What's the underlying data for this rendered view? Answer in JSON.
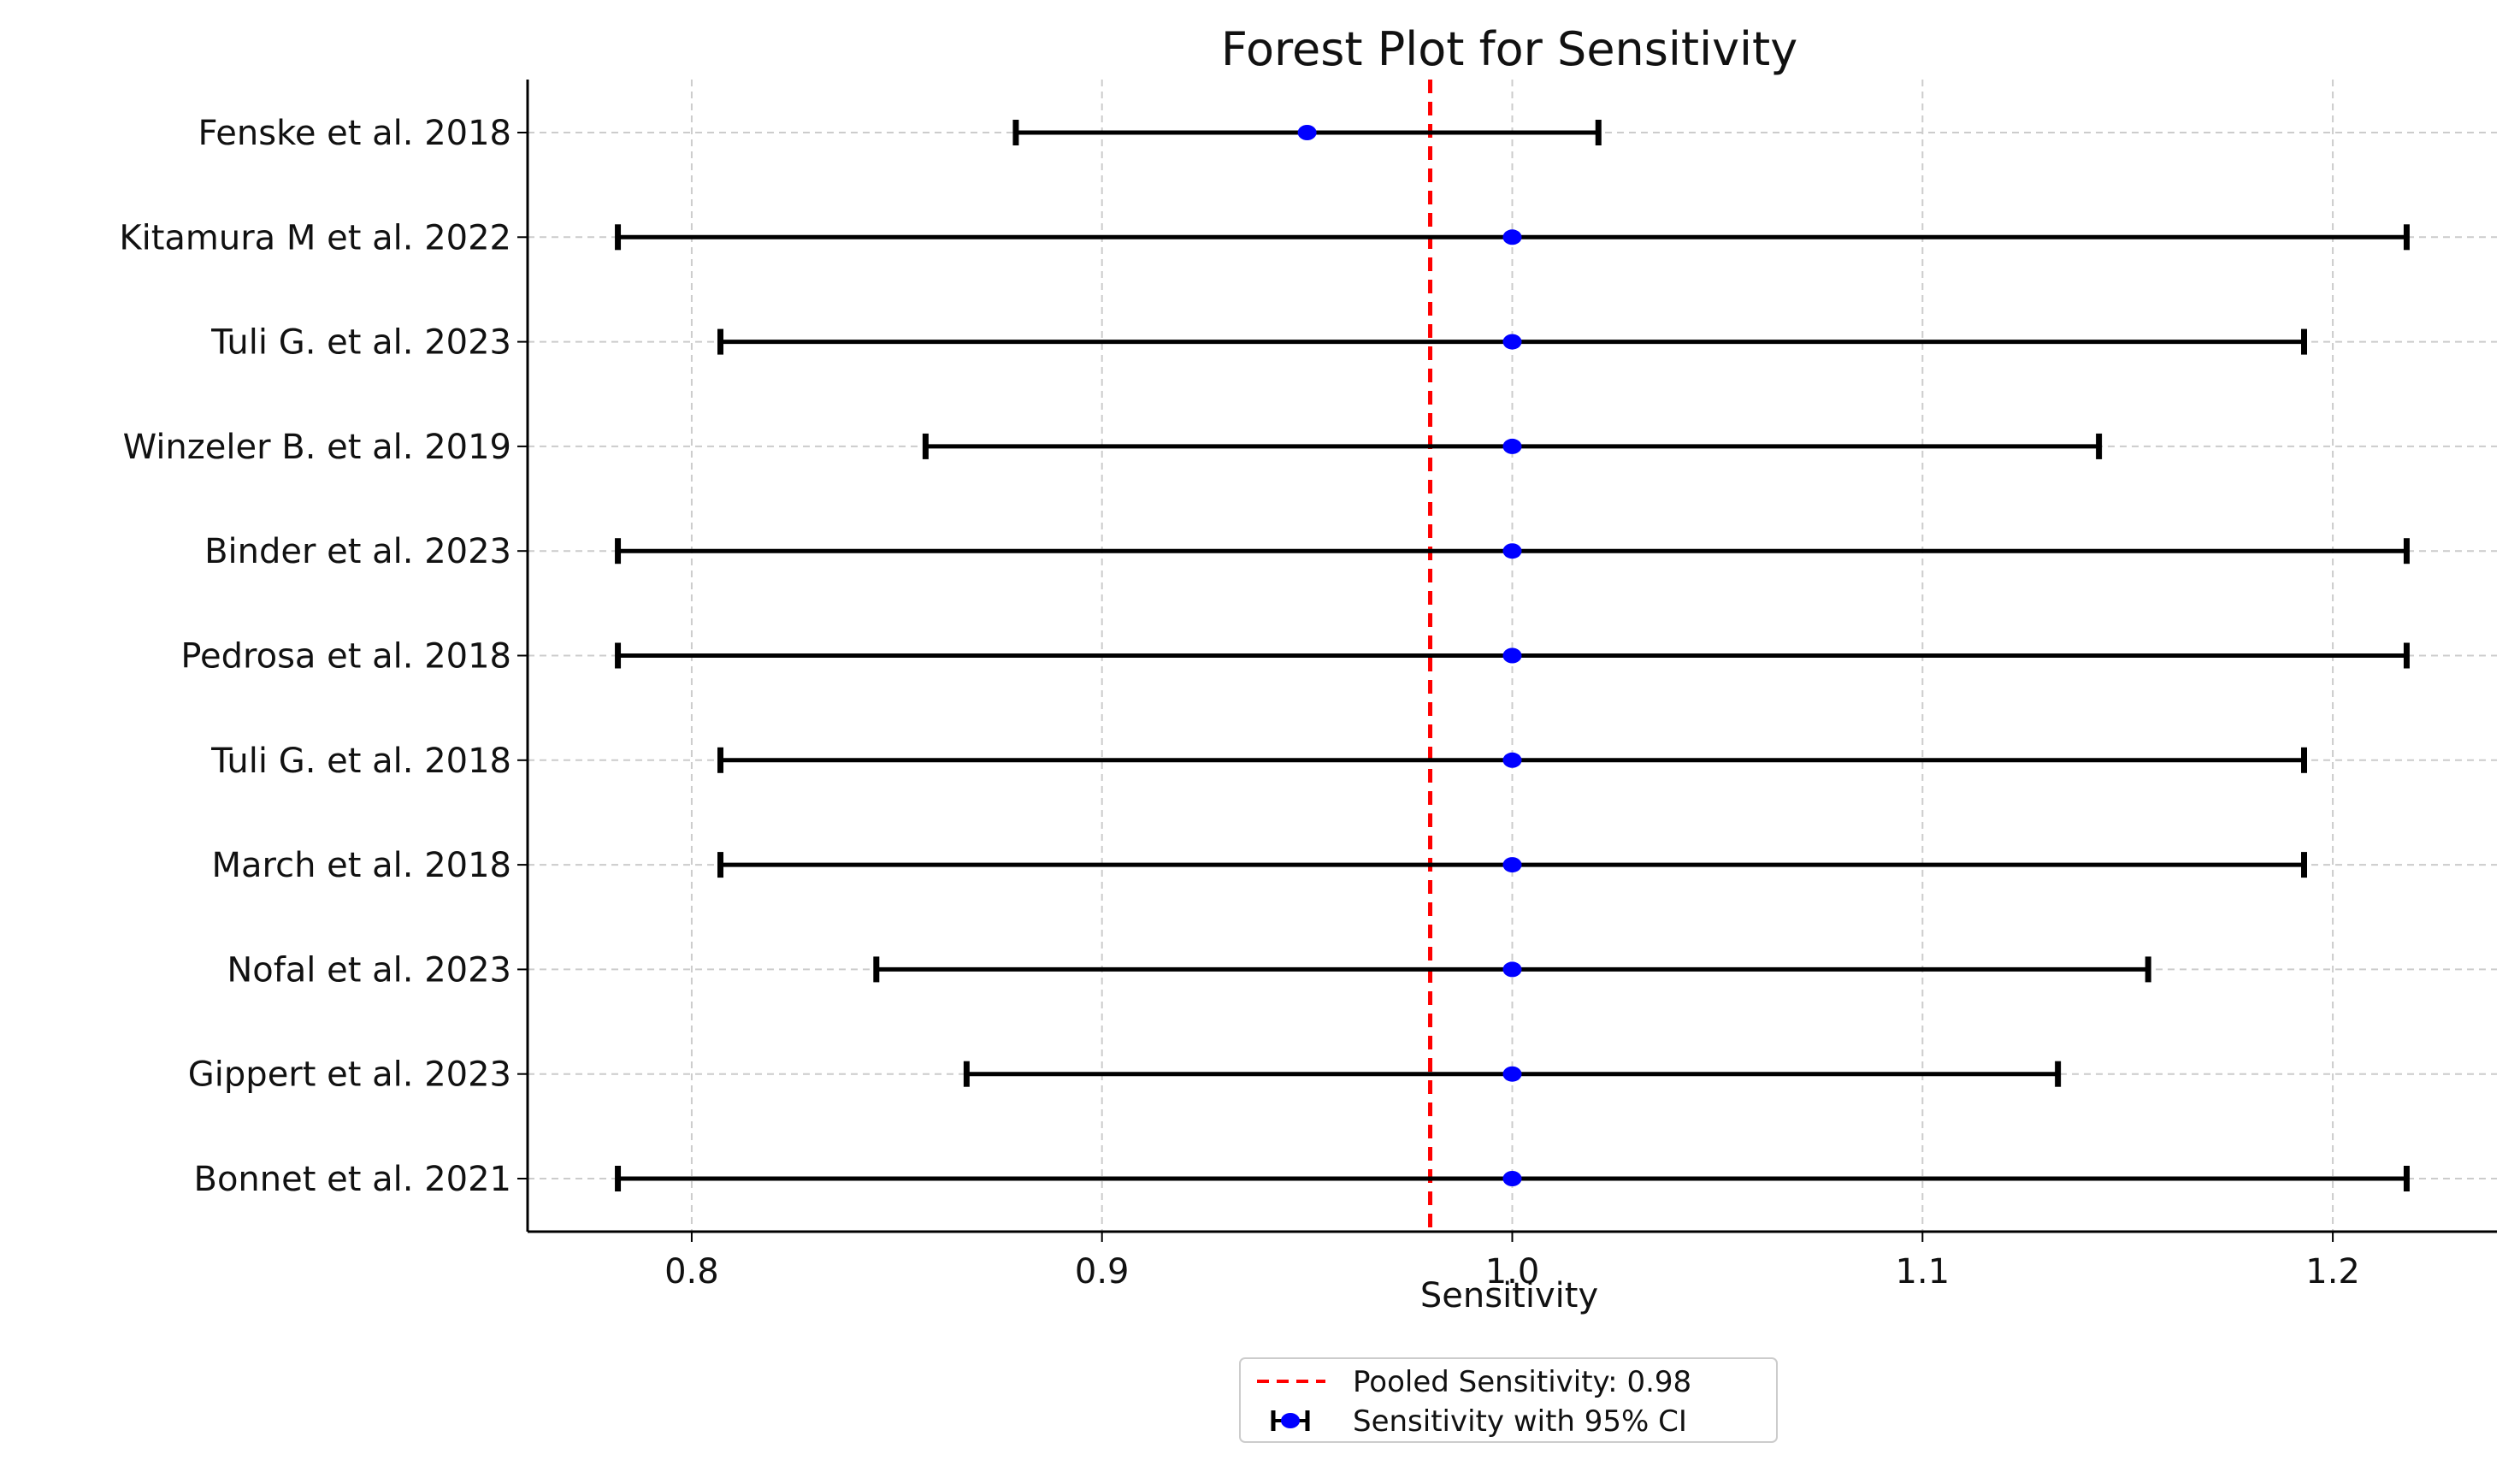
{
  "chart_data": {
    "type": "forest",
    "title": "Forest Plot for Sensitivity",
    "xlabel": "Sensitivity",
    "ylabel": "",
    "xlim": [
      0.76,
      1.24
    ],
    "xticks": [
      "0.8",
      "0.9",
      "1.0",
      "1.1",
      "1.2"
    ],
    "grid": true,
    "studies": [
      {
        "label": "Fenske et al. 2018",
        "estimate": 0.95,
        "lower": 0.879,
        "upper": 1.021
      },
      {
        "label": "Kitamura M et al. 2022",
        "estimate": 1.0,
        "lower": 0.782,
        "upper": 1.218
      },
      {
        "label": "Tuli G. et al. 2023",
        "estimate": 1.0,
        "lower": 0.807,
        "upper": 1.193
      },
      {
        "label": "Winzeler B. et al. 2019",
        "estimate": 1.0,
        "lower": 0.857,
        "upper": 1.143
      },
      {
        "label": "Binder et al. 2023",
        "estimate": 1.0,
        "lower": 0.782,
        "upper": 1.218
      },
      {
        "label": "Pedrosa et al. 2018",
        "estimate": 1.0,
        "lower": 0.782,
        "upper": 1.218
      },
      {
        "label": "Tuli G. et al. 2018",
        "estimate": 1.0,
        "lower": 0.807,
        "upper": 1.193
      },
      {
        "label": "March et al. 2018",
        "estimate": 1.0,
        "lower": 0.807,
        "upper": 1.193
      },
      {
        "label": "Nofal et al. 2023",
        "estimate": 1.0,
        "lower": 0.845,
        "upper": 1.155
      },
      {
        "label": "Gippert et al. 2023",
        "estimate": 1.0,
        "lower": 0.867,
        "upper": 1.133
      },
      {
        "label": "Bonnet et al. 2021",
        "estimate": 1.0,
        "lower": 0.782,
        "upper": 1.218
      }
    ],
    "pooled": {
      "value": 0.98,
      "label": "Pooled Sensitivity: 0.98",
      "color": "#ff0000"
    },
    "legend": {
      "placement": "bottom-center",
      "entries": [
        "Pooled Sensitivity: 0.98",
        "Sensitivity with 95% CI"
      ]
    },
    "colors": {
      "point": "#0000ff",
      "ci": "#000000",
      "pooled": "#ff0000",
      "grid": "#cccccc"
    }
  }
}
